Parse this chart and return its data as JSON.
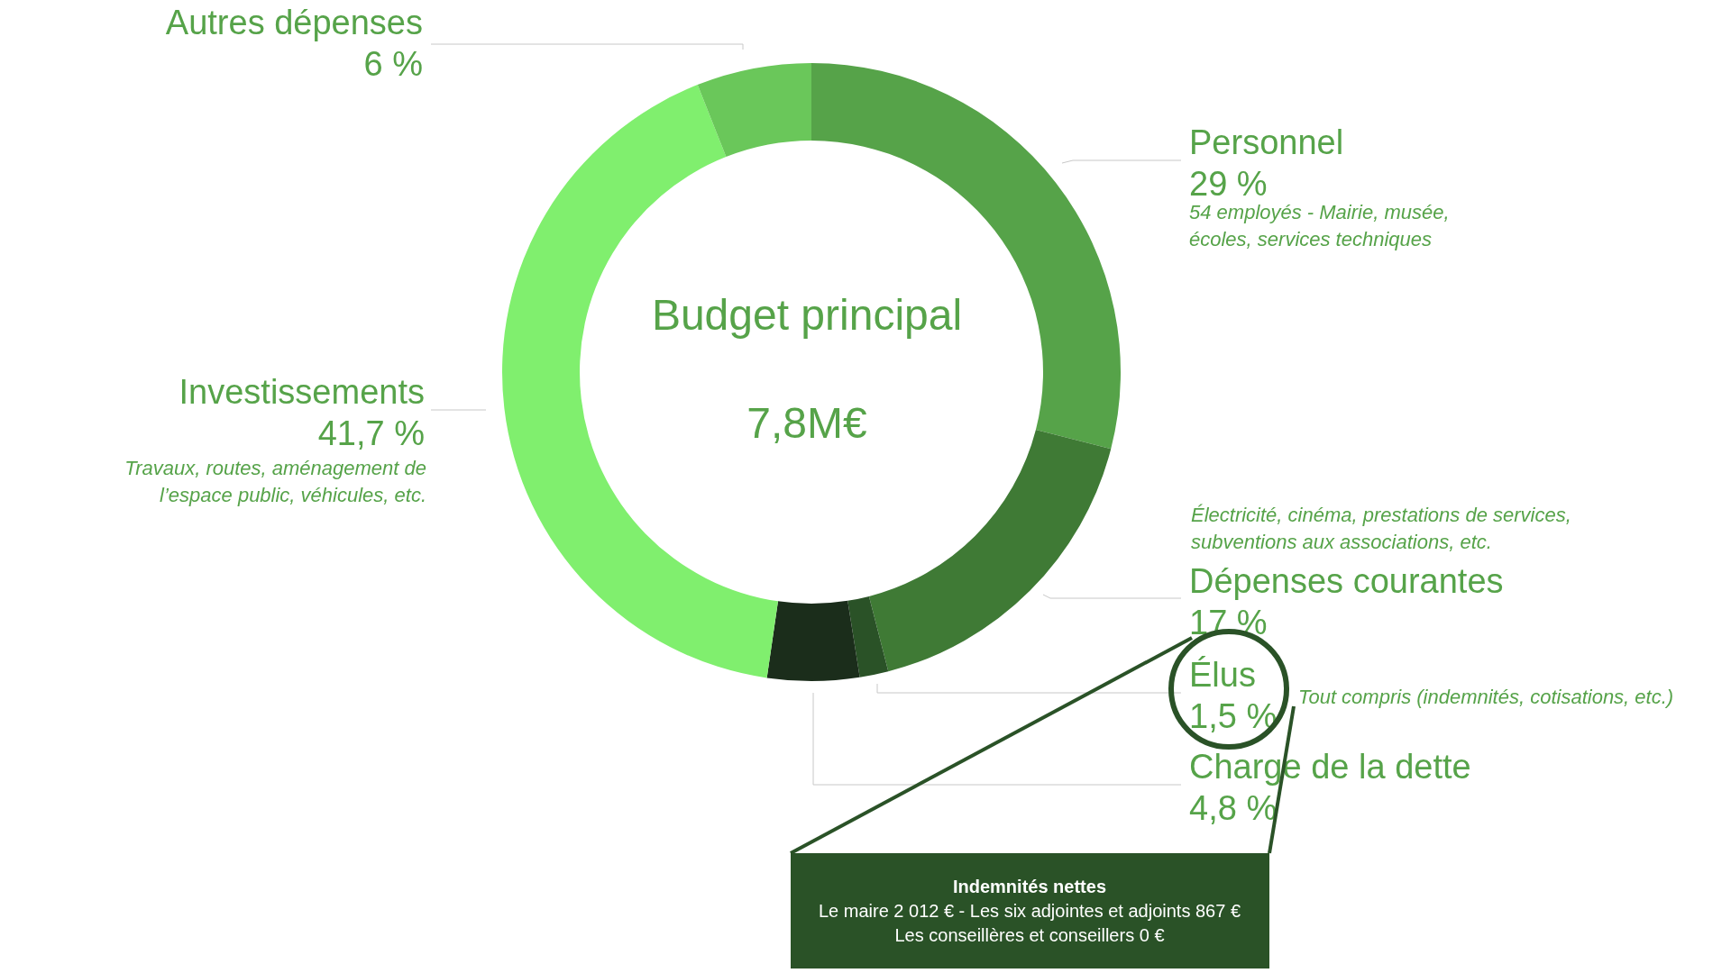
{
  "chart_data": {
    "type": "donut",
    "title": "Budget principal",
    "subtitle": "7,8M€",
    "categories": [
      "Personnel",
      "Dépenses courantes",
      "Élus",
      "Charge de la dette",
      "Investissements",
      "Autres dépenses"
    ],
    "values": [
      29,
      17,
      1.5,
      4.8,
      41.7,
      6
    ],
    "colors": [
      "#56a349",
      "#3f7a35",
      "#2a5227",
      "#1b2d1b",
      "#80ef6e",
      "#6ac75a"
    ],
    "value_labels": [
      "29 %",
      "17 %",
      "1,5 %",
      "4,8 %",
      "41,7 %",
      "6 %"
    ],
    "annotations": [
      "54 employés - Mairie, musée,\nécoles, services techniques",
      "Électricité, cinéma, prestations de services,\nsubventions aux associations, etc.",
      "Tout compris (indemnités, cotisations, etc.)",
      "Travaux, routes, aménagement de\nl’espace public, véhicules, etc.",
      "Indemnités nettes",
      "Le maire 2 012 € - Les six adjointes et adjoints 867 €",
      "Les conseillères et conseillers 0 €"
    ]
  }
}
